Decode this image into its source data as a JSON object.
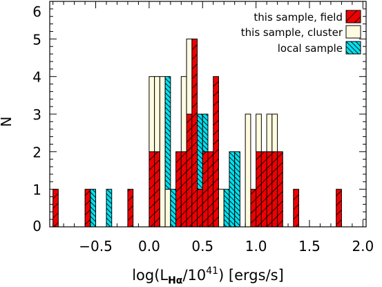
{
  "chart_data": {
    "type": "bar",
    "subtype": "stacked-histogram",
    "title": "",
    "xlabel": {
      "prefix": "log(L",
      "subscript": "Hα",
      "middle": "/10",
      "superscript": "41",
      "suffix": ") [ergs/s]"
    },
    "ylabel": "N",
    "xlim": [
      -0.93,
      2.03
    ],
    "ylim": [
      0,
      6
    ],
    "bin_width": 0.05,
    "x_ticks": [
      -0.5,
      0.0,
      0.5,
      1.0,
      1.5,
      2.0
    ],
    "x_tick_labels": [
      "−0.5",
      "0.0",
      "0.5",
      "1.0",
      "1.5",
      "2.0"
    ],
    "y_ticks": [
      0,
      1,
      2,
      3,
      4,
      5,
      6
    ],
    "y_tick_labels": [
      "0",
      "1",
      "2",
      "3",
      "4",
      "5",
      "6"
    ],
    "legend_position": "top-right",
    "series": [
      {
        "name": "this sample, field",
        "color": "#ee0000",
        "hatch": "diagonal-up",
        "bins": [
          {
            "x": -0.9,
            "count": 1
          },
          {
            "x": -0.6,
            "count": 1
          },
          {
            "x": -0.2,
            "count": 1
          },
          {
            "x": 0.0,
            "count": 2
          },
          {
            "x": 0.05,
            "count": 2
          },
          {
            "x": 0.25,
            "count": 2
          },
          {
            "x": 0.3,
            "count": 2
          },
          {
            "x": 0.35,
            "count": 3
          },
          {
            "x": 0.4,
            "count": 5
          },
          {
            "x": 0.45,
            "count": 1
          },
          {
            "x": 0.5,
            "count": 2
          },
          {
            "x": 0.55,
            "count": 2
          },
          {
            "x": 0.6,
            "count": 4
          },
          {
            "x": 0.95,
            "count": 1
          },
          {
            "x": 1.0,
            "count": 2
          },
          {
            "x": 1.05,
            "count": 2
          },
          {
            "x": 1.1,
            "count": 2
          },
          {
            "x": 1.15,
            "count": 2
          },
          {
            "x": 1.2,
            "count": 2
          },
          {
            "x": 1.35,
            "count": 1
          },
          {
            "x": 1.75,
            "count": 1
          }
        ]
      },
      {
        "name": "this sample, cluster",
        "color": "#fffbe0",
        "hatch": "none",
        "bins": [
          {
            "x": 0.0,
            "count": 2
          },
          {
            "x": 0.05,
            "count": 2
          },
          {
            "x": 0.1,
            "count": 4
          },
          {
            "x": 0.15,
            "count": 1
          },
          {
            "x": 0.3,
            "count": 2
          },
          {
            "x": 0.35,
            "count": 2
          },
          {
            "x": 0.65,
            "count": 1
          },
          {
            "x": 0.9,
            "count": 3
          },
          {
            "x": 1.0,
            "count": 1
          },
          {
            "x": 1.1,
            "count": 1
          },
          {
            "x": 1.15,
            "count": 1
          }
        ]
      },
      {
        "name": "local sample",
        "color": "#00e0ee",
        "hatch": "diagonal-down",
        "bins": [
          {
            "x": -0.55,
            "count": 1
          },
          {
            "x": -0.4,
            "count": 1
          },
          {
            "x": 0.15,
            "count": 3
          },
          {
            "x": 0.2,
            "count": 1
          },
          {
            "x": 0.45,
            "count": 2
          },
          {
            "x": 0.5,
            "count": 1
          },
          {
            "x": 0.7,
            "count": 1
          },
          {
            "x": 0.75,
            "count": 2
          },
          {
            "x": 0.8,
            "count": 2
          }
        ]
      }
    ]
  }
}
